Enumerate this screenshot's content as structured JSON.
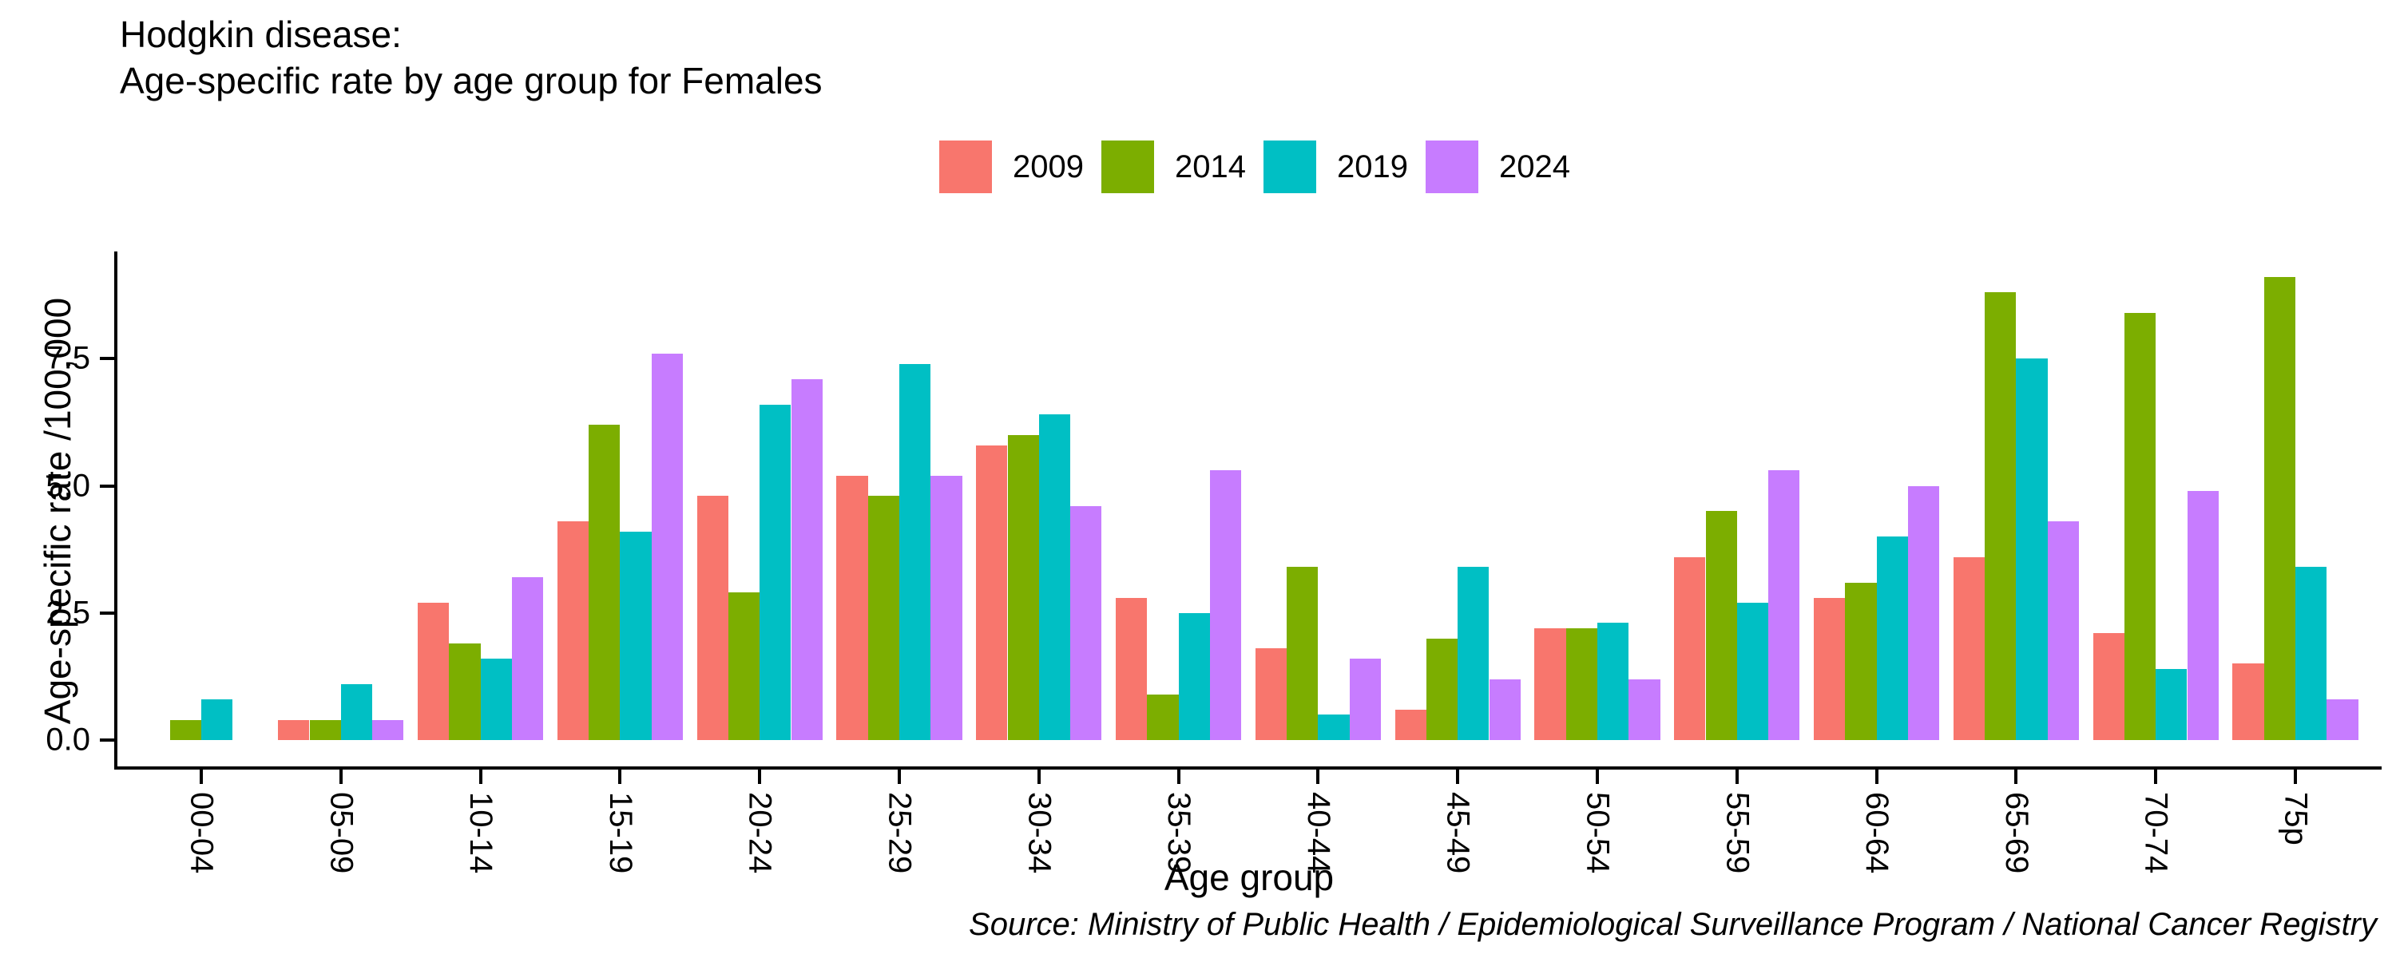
{
  "title": {
    "line1": "Hodgkin disease:",
    "line2": "Age-specific rate by age group for Females"
  },
  "footer": {
    "source": "Source: Ministry of Public Health / Epidemiological Surveillance Program / National Cancer Registry"
  },
  "chart_data": {
    "type": "bar",
    "title": "Hodgkin disease: Age-specific rate by age group for Females",
    "xlabel": "Age group",
    "ylabel": "Age-specific rate /100,000",
    "ytick_labels": [
      "0.0",
      "2.5",
      "5.0",
      "7.5"
    ],
    "ytick_values": [
      0,
      2.5,
      5,
      7.5
    ],
    "ylim": [
      0,
      9.6
    ],
    "grid": false,
    "legend_position": "top",
    "categories": [
      "00-04",
      "05-09",
      "10-14",
      "15-19",
      "20-24",
      "25-29",
      "30-34",
      "35-39",
      "40-44",
      "45-49",
      "50-54",
      "55-59",
      "60-64",
      "65-69",
      "70-74",
      "75p"
    ],
    "series": [
      {
        "name": "2009",
        "color": "#F8766D",
        "values": [
          0,
          0.4,
          2.7,
          4.3,
          4.8,
          5.2,
          5.8,
          2.8,
          1.8,
          0.6,
          2.2,
          3.6,
          2.8,
          3.6,
          2.1,
          1.5
        ]
      },
      {
        "name": "2014",
        "color": "#7CAE00",
        "values": [
          0.4,
          0.4,
          1.9,
          6.2,
          2.9,
          4.8,
          6.0,
          0.9,
          3.4,
          2.0,
          2.2,
          4.5,
          3.1,
          8.8,
          8.4,
          9.1
        ]
      },
      {
        "name": "2019",
        "color": "#00BFC4",
        "values": [
          0.8,
          1.1,
          1.6,
          4.1,
          6.6,
          7.4,
          6.4,
          2.5,
          0.5,
          3.4,
          2.3,
          2.7,
          4.0,
          7.5,
          1.4,
          3.4
        ]
      },
      {
        "name": "2024",
        "color": "#C77CFF",
        "values": [
          0,
          0.4,
          3.2,
          7.6,
          7.1,
          5.2,
          4.6,
          5.3,
          1.6,
          1.2,
          1.2,
          5.3,
          5.0,
          4.3,
          4.9,
          0.8
        ]
      }
    ]
  }
}
